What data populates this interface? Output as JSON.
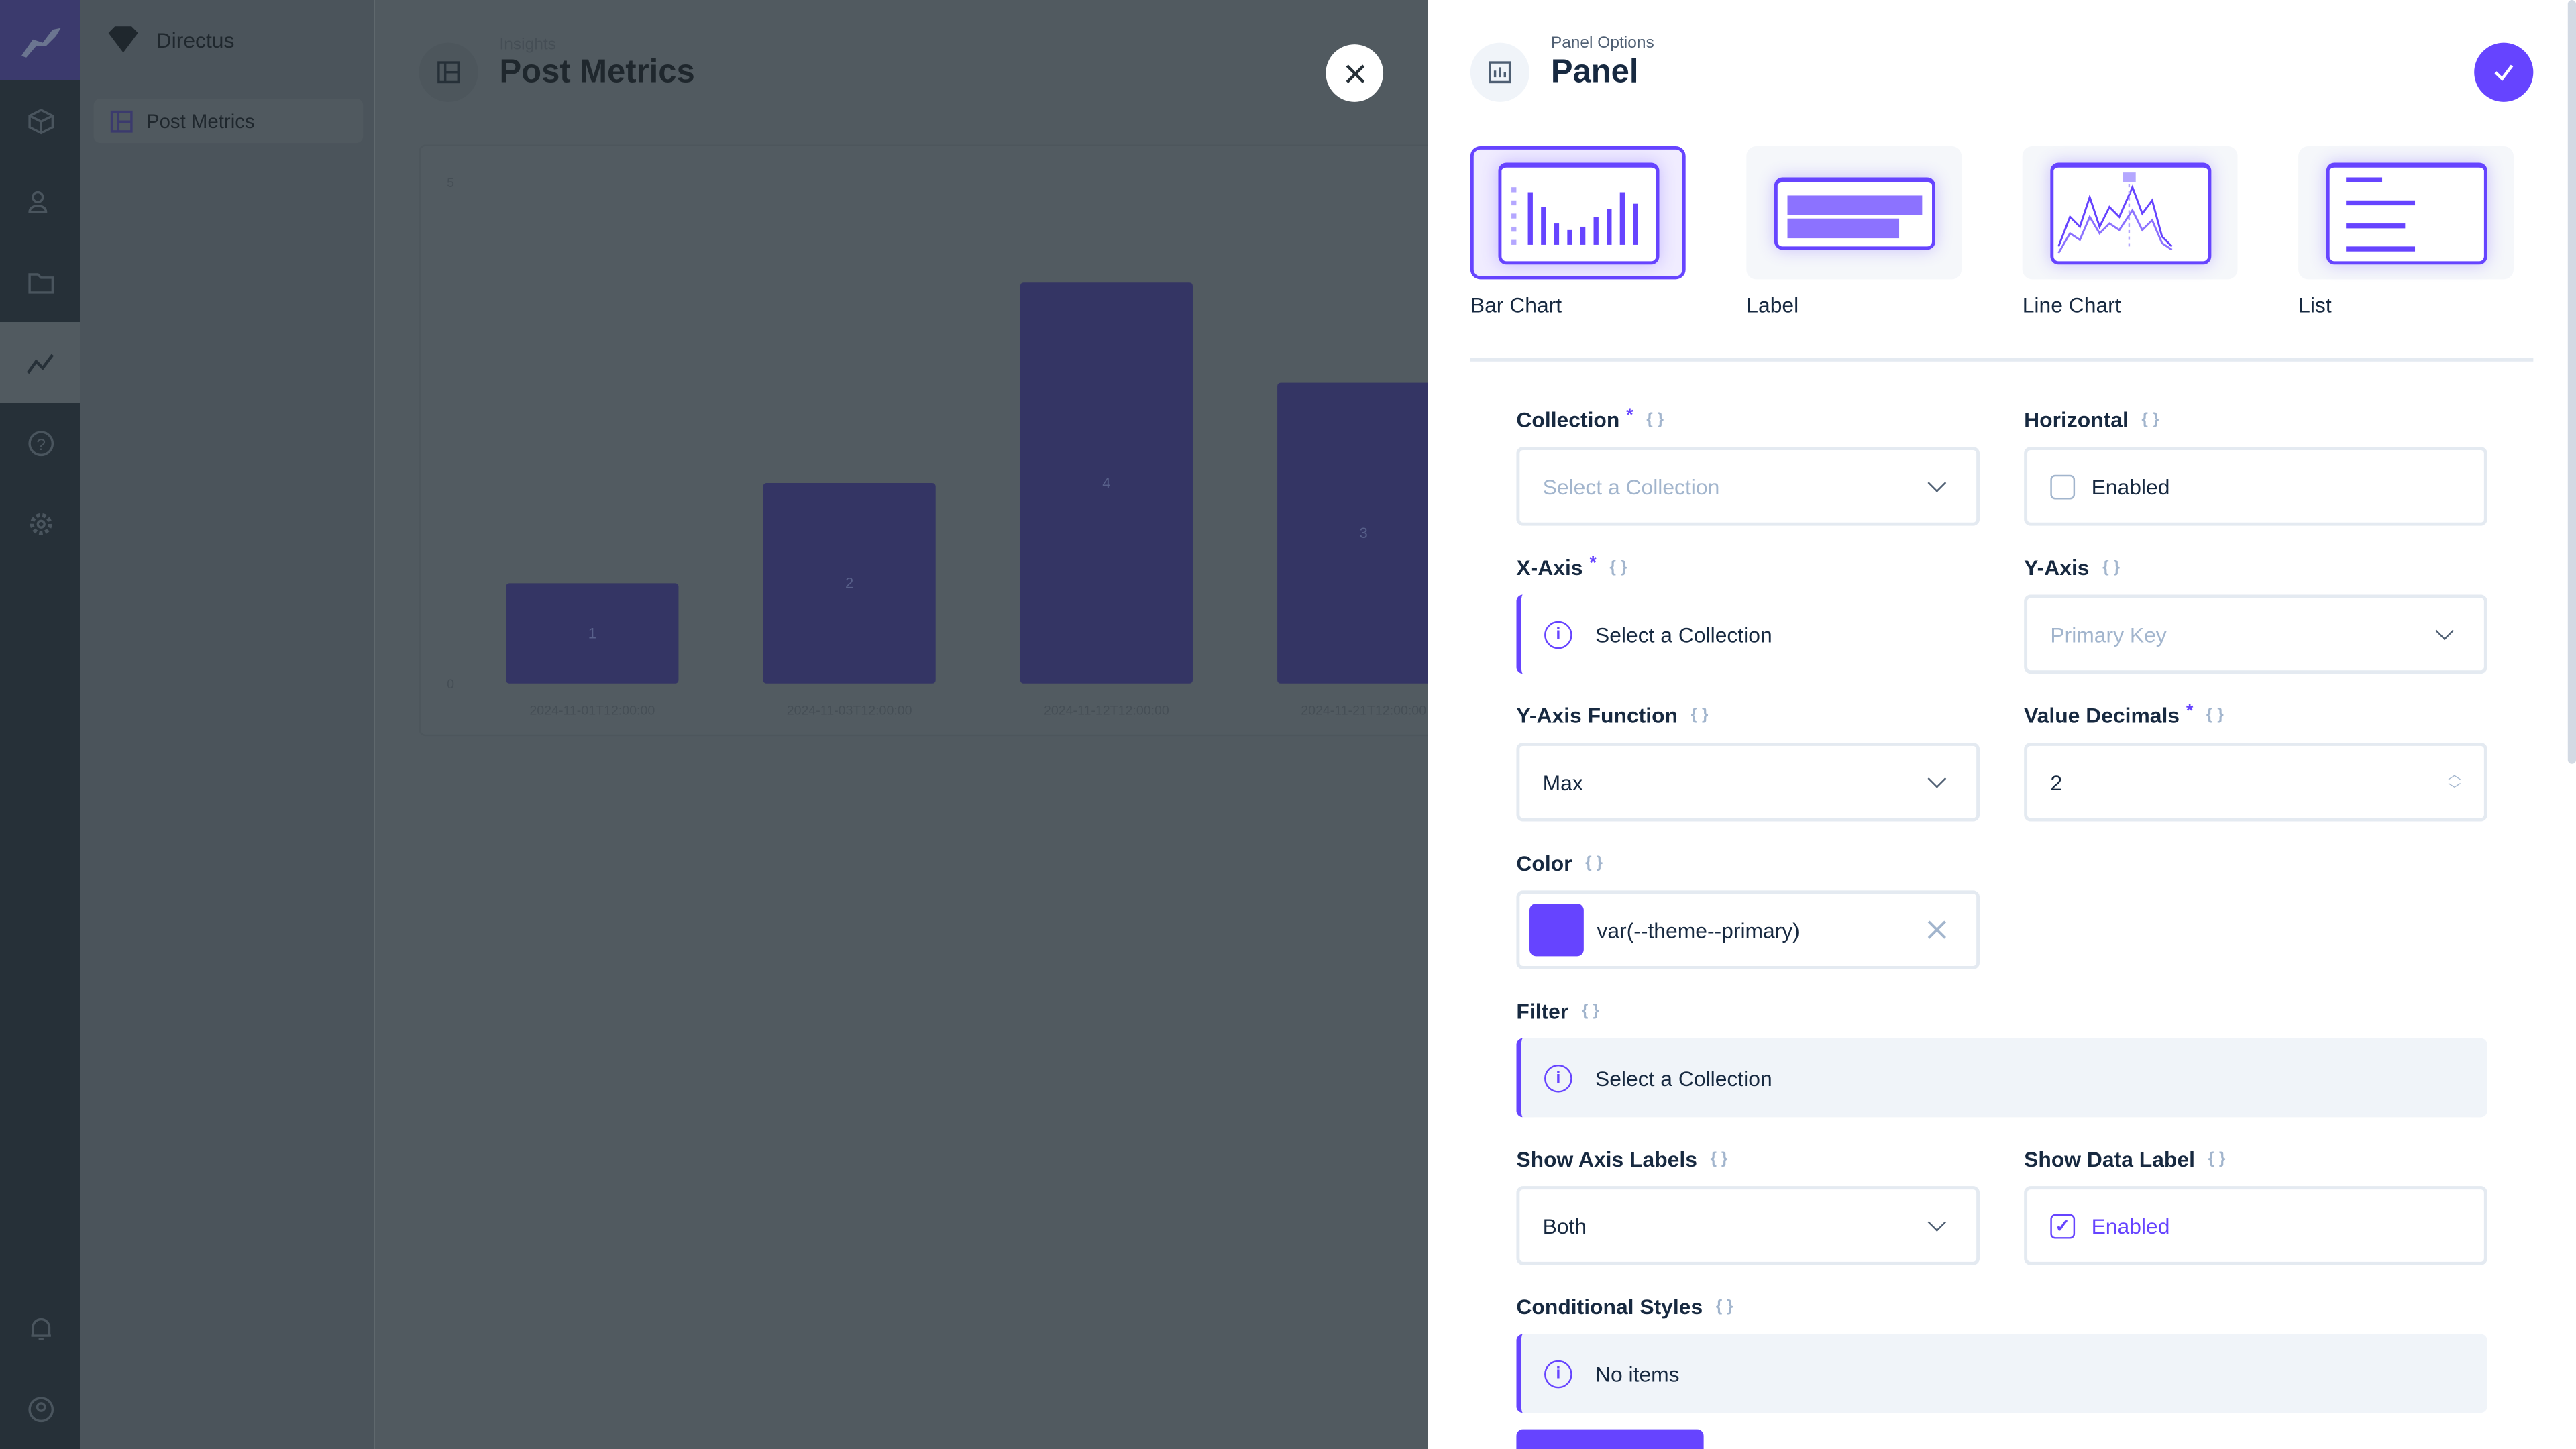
{
  "nav": {
    "icons": [
      "directus-logo-icon",
      "content-box-icon",
      "users-icon",
      "folder-icon",
      "insights-icon",
      "help-icon",
      "settings-icon",
      "notifications-bell-icon",
      "user-profile-icon"
    ]
  },
  "sidebar": {
    "project": "Directus",
    "items": [
      {
        "label": "Post Metrics"
      }
    ]
  },
  "header": {
    "breadcrumb": "Insights",
    "title": "Post Metrics"
  },
  "chart_data": {
    "type": "bar",
    "categories": [
      "2024-11-01T12:00:00",
      "2024-11-03T12:00:00",
      "2024-11-12T12:00:00",
      "2024-11-21T12:00:00"
    ],
    "values": [
      1,
      2,
      4,
      3
    ],
    "ylim": [
      0,
      5
    ],
    "yticks": [
      "5",
      "0"
    ],
    "data_labels": true,
    "bar_color": "#343564"
  },
  "drawer": {
    "subtitle": "Panel Options",
    "title": "Panel",
    "accent": "#6644ff",
    "types": [
      {
        "label": "Bar Chart",
        "selected": true
      },
      {
        "label": "Label"
      },
      {
        "label": "Line Chart"
      },
      {
        "label": "List"
      }
    ],
    "fields": {
      "collection": {
        "label": "Collection",
        "placeholder": "Select a Collection"
      },
      "horizontal": {
        "label": "Horizontal",
        "value": "Enabled",
        "checked": false
      },
      "xaxis": {
        "label": "X-Axis",
        "notice": "Select a Collection"
      },
      "yaxis": {
        "label": "Y-Axis",
        "placeholder": "Primary Key"
      },
      "yfunc": {
        "label": "Y-Axis Function",
        "value": "Max"
      },
      "decimals": {
        "label": "Value Decimals",
        "value": "2"
      },
      "color": {
        "label": "Color",
        "value": "var(--theme--primary)",
        "swatch": "#6644ff"
      },
      "filter": {
        "label": "Filter",
        "notice": "Select a Collection"
      },
      "axislabels": {
        "label": "Show Axis Labels",
        "value": "Both"
      },
      "datalabel": {
        "label": "Show Data Label",
        "value": "Enabled",
        "checked": true
      },
      "condstyles": {
        "label": "Conditional Styles",
        "notice": "No items"
      }
    }
  }
}
